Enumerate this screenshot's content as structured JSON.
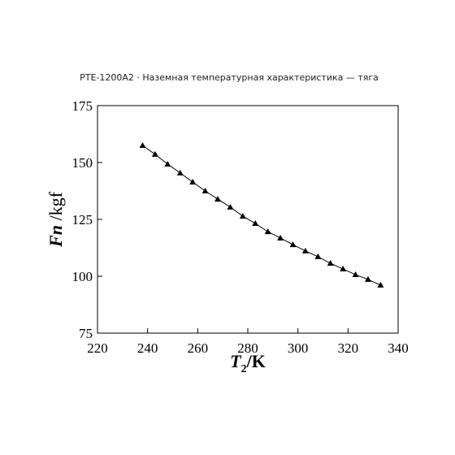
{
  "chart_data": {
    "type": "line",
    "title": "PTE-1200A2 · Наземная температурная характеристика — тяга",
    "xlabel": [
      "T",
      "2",
      "/K"
    ],
    "ylabel": [
      "Fn",
      " /kgf"
    ],
    "x": [
      238,
      243,
      248,
      253,
      258,
      263,
      268,
      273,
      278,
      283,
      288,
      293,
      298,
      303,
      308,
      313,
      318,
      323,
      328,
      333
    ],
    "series": [
      {
        "color": "#000000",
        "values": [
          157.5,
          153.6,
          149.3,
          145.4,
          141.4,
          137.5,
          133.9,
          130.4,
          126.4,
          123.2,
          119.6,
          116.8,
          113.9,
          111.1,
          108.6,
          105.7,
          103.2,
          100.7,
          98.6,
          96.1
        ]
      }
    ],
    "xlim": [
      220,
      340
    ],
    "xticks": [
      220,
      240,
      260,
      280,
      300,
      320,
      340
    ],
    "ylim": [
      75,
      175
    ],
    "yticks": [
      75,
      100,
      125,
      150,
      175
    ]
  }
}
